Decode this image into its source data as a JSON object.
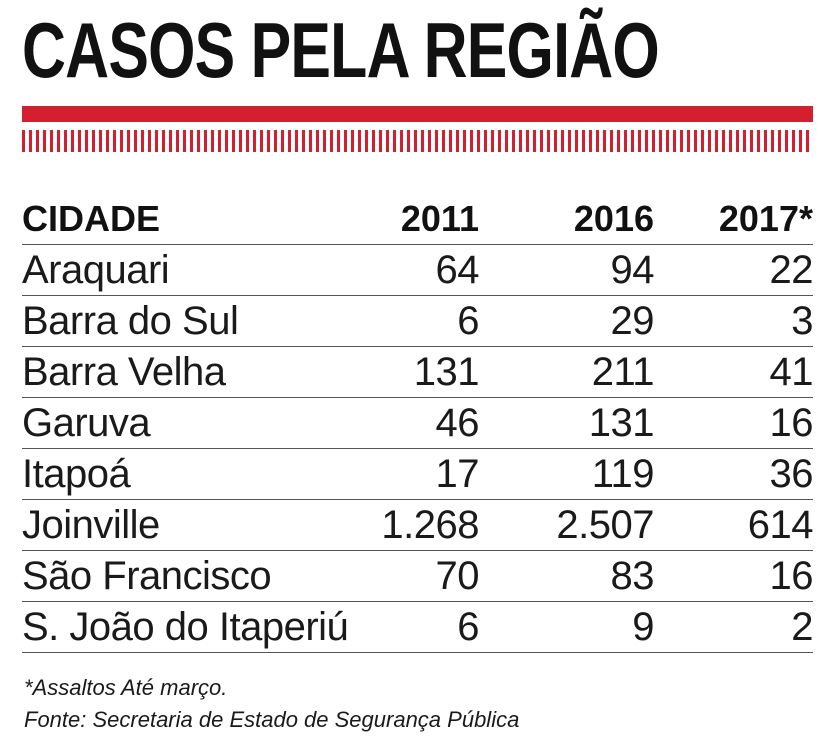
{
  "title": "CASOS PELA REGIÃO",
  "colors": {
    "accent_red": "#d41f2e",
    "text": "#1a1a1a"
  },
  "chart_data": {
    "type": "table",
    "title": "CASOS PELA REGIÃO",
    "columns": [
      "CIDADE",
      "2011",
      "2016",
      "2017*"
    ],
    "rows": [
      [
        "Araquari",
        "64",
        "94",
        "22"
      ],
      [
        "Barra do Sul",
        "6",
        "29",
        "3"
      ],
      [
        "Barra Velha",
        "131",
        "211",
        "41"
      ],
      [
        "Garuva",
        "46",
        "131",
        "16"
      ],
      [
        "Itapoá",
        "17",
        "119",
        "36"
      ],
      [
        "Joinville",
        "1.268",
        "2.507",
        "614"
      ],
      [
        "São Francisco",
        "70",
        "83",
        "16"
      ],
      [
        "S. João do Itaperiú",
        "6",
        "9",
        "2"
      ]
    ]
  },
  "footnote": "*Assaltos Até março.",
  "source": "Fonte: Secretaria de Estado de Segurança Pública"
}
